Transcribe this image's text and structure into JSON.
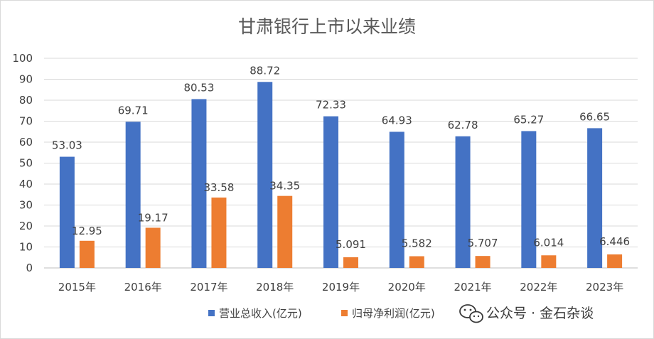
{
  "chart_data": {
    "type": "bar",
    "title": "甘肃银行上市以来业绩",
    "categories": [
      "2015年",
      "2016年",
      "2017年",
      "2018年",
      "2019年",
      "2020年",
      "2021年",
      "2022年",
      "2023年"
    ],
    "series": [
      {
        "name": "营业总收入(亿元)",
        "color": "#4472c4",
        "values": [
          53.03,
          69.71,
          80.53,
          88.72,
          72.33,
          64.93,
          62.78,
          65.27,
          66.65
        ],
        "labels": [
          "53.03",
          "69.71",
          "80.53",
          "88.72",
          "72.33",
          "64.93",
          "62.78",
          "65.27",
          "66.65"
        ]
      },
      {
        "name": "归母净利润(亿元)",
        "color": "#ed7d31",
        "values": [
          12.95,
          19.17,
          33.58,
          34.35,
          5.091,
          5.582,
          5.707,
          6.014,
          6.446
        ],
        "labels": [
          "12.95",
          "19.17",
          "33.58",
          "34.35",
          "5.091",
          "5.582",
          "5.707",
          "6.014",
          "6.446"
        ]
      }
    ],
    "ylim": [
      0,
      100
    ],
    "yticks": [
      "0",
      "10",
      "20",
      "30",
      "40",
      "50",
      "60",
      "70",
      "80",
      "90",
      "100"
    ],
    "grid": true,
    "legend_position": "bottom"
  },
  "watermark": {
    "text": "公众号 · 金石杂谈",
    "icon": "wechat-icon"
  }
}
